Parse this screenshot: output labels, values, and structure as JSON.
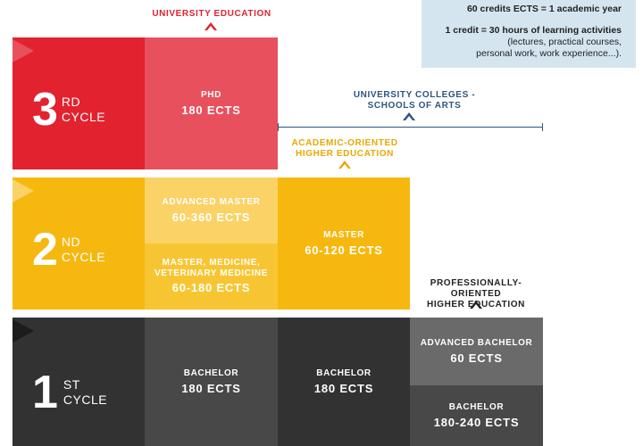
{
  "info_box": {
    "line1": "60 credits ECTS = 1 academic year",
    "line2": "1 credit = 30 hours of learning activities",
    "line3": "(lectures, practical courses,",
    "line4": "personal work, work experience...)."
  },
  "labels": {
    "university_education": "UNIVERSITY EDUCATION",
    "university_colleges_1": "UNIVERSITY COLLEGES -",
    "university_colleges_2": "SCHOOLS OF ARTS",
    "academic_oriented_1": "ACADEMIC-ORIENTED",
    "academic_oriented_2": "HIGHER EDUCATION",
    "professionally_oriented_1": "PROFESSIONALLY-ORIENTED",
    "professionally_oriented_2": "HIGHER EDUCATION"
  },
  "cycles": {
    "third": {
      "number": "3",
      "sup": "RD",
      "word": "CYCLE"
    },
    "second": {
      "number": "2",
      "sup": "ND",
      "word": "CYCLE"
    },
    "first": {
      "number": "1",
      "sup": "ST",
      "word": "CYCLE"
    }
  },
  "cells": {
    "phd": {
      "title": "PHD",
      "value": "180 ECTS"
    },
    "advanced_master": {
      "title": "ADVANCED MASTER",
      "value": "60-360 ECTS"
    },
    "master_medicine": {
      "title1": "MASTER, MEDICINE,",
      "title2": "VETERINARY MEDICINE",
      "value": "60-180 ECTS"
    },
    "master": {
      "title": "MASTER",
      "value": "60-120 ECTS"
    },
    "bachelor_univ": {
      "title": "BACHELOR",
      "value": "180 ECTS"
    },
    "bachelor_college": {
      "title": "BACHELOR",
      "value": "180 ECTS"
    },
    "advanced_bachelor": {
      "title": "ADVANCED BACHELOR",
      "value": "60 ECTS"
    },
    "bachelor_prof": {
      "title": "BACHELOR",
      "value": "180-240 ECTS"
    }
  },
  "colors": {
    "red_dark": "#e2222f",
    "red_light": "#e8505d",
    "yellow": "#f6b80f",
    "yellow_light": "#fad266",
    "yellow_mid": "#f8c532",
    "dark": "#323232",
    "gray_mid": "#6a6a6a",
    "gray_dark": "#484848",
    "info_bg": "#d4e5f0",
    "blue_text": "#2b5580"
  }
}
